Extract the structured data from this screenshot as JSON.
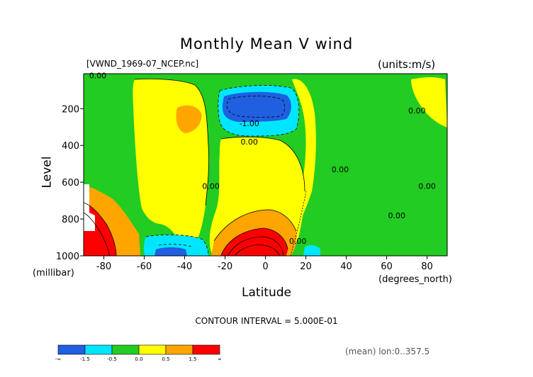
{
  "chart_data": {
    "type": "heatmap",
    "title": "Monthly Mean V wind",
    "file_label": "[VWND_1969-07_NCEP.nc]",
    "units_label": "(units:m/s)",
    "ylabel": "Level",
    "ylabel_unit": "(millibar)",
    "xlabel": "Latitude",
    "xlabel_unit": "(degrees_north)",
    "x_ticks": [
      "-80",
      "-60",
      "-40",
      "-20",
      "0",
      "20",
      "40",
      "60",
      "80"
    ],
    "x_tick_values": [
      -80,
      -60,
      -40,
      -20,
      0,
      20,
      40,
      60,
      80
    ],
    "y_ticks": [
      "200",
      "400",
      "600",
      "800",
      "1000"
    ],
    "y_tick_values": [
      200,
      400,
      600,
      800,
      1000
    ],
    "xlim": [
      -90,
      90
    ],
    "ylim": [
      1000,
      10
    ],
    "contour_interval_text": "CONTOUR INTERVAL = 5.000E-01",
    "contour_labels": [
      {
        "text": "0.00",
        "lat": -83,
        "lev": 20
      },
      {
        "text": "-1.00",
        "lat": -8,
        "lev": 280
      },
      {
        "text": "0.00",
        "lat": -8,
        "lev": 380
      },
      {
        "text": "0.00",
        "lat": -27,
        "lev": 620
      },
      {
        "text": "0.00",
        "lat": 16,
        "lev": 920
      },
      {
        "text": "0.00",
        "lat": 37,
        "lev": 530
      },
      {
        "text": "0.00",
        "lat": 75,
        "lev": 210
      },
      {
        "text": "0.00",
        "lat": 80,
        "lev": 620
      },
      {
        "text": "0.00",
        "lat": 65,
        "lev": 780
      }
    ],
    "legend": {
      "colors": [
        "#1f5fe0",
        "#00e6ff",
        "#22cc22",
        "#ffff00",
        "#ffa500",
        "#ff0000"
      ],
      "labels": [
        "-∞",
        "-1.5",
        "-0.5",
        "0.0",
        "0.5",
        "1.5",
        "∞"
      ]
    },
    "mean_text": "(mean) lon:0..357.5"
  }
}
